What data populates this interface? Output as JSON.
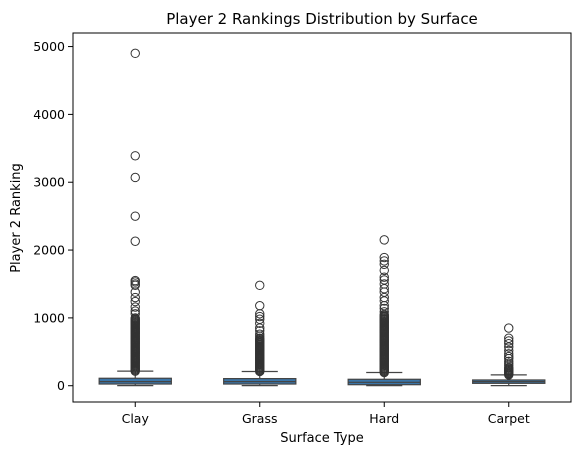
{
  "chart_data": {
    "type": "box",
    "title": "Player 2 Rankings Distribution by Surface",
    "xlabel": "Surface Type",
    "ylabel": "Player 2 Ranking",
    "categories": [
      "Clay",
      "Grass",
      "Hard",
      "Carpet"
    ],
    "ylim": [
      -240,
      5200
    ],
    "yticks": [
      0,
      1000,
      2000,
      3000,
      4000,
      5000
    ],
    "grid": false,
    "box_color": "#3a75a8",
    "series": [
      {
        "category": "Clay",
        "min": 1,
        "q1": 25,
        "median": 60,
        "q3": 110,
        "whisker_high": 215,
        "dense_outliers_to": 1000,
        "outliers": [
          1060,
          1100,
          1160,
          1240,
          1300,
          1380,
          1480,
          1500,
          1530,
          1550,
          2130,
          2500,
          3070,
          3390,
          4900
        ]
      },
      {
        "category": "Grass",
        "min": 1,
        "q1": 25,
        "median": 60,
        "q3": 105,
        "whisker_high": 210,
        "dense_outliers_to": 700,
        "outliers": [
          730,
          760,
          810,
          850,
          920,
          980,
          1020,
          1060,
          1180,
          1480
        ]
      },
      {
        "category": "Hard",
        "min": 1,
        "q1": 15,
        "median": 50,
        "q3": 95,
        "whisker_high": 195,
        "dense_outliers_to": 1050,
        "outliers": [
          1090,
          1140,
          1180,
          1250,
          1300,
          1380,
          1430,
          1500,
          1560,
          1600,
          1700,
          1790,
          1840,
          1890,
          2150
        ]
      },
      {
        "category": "Carpet",
        "min": 1,
        "q1": 35,
        "median": 60,
        "q3": 85,
        "whisker_high": 160,
        "dense_outliers_to": 270,
        "outliers": [
          300,
          330,
          360,
          400,
          430,
          470,
          520,
          570,
          620,
          660,
          700,
          850
        ]
      }
    ]
  }
}
